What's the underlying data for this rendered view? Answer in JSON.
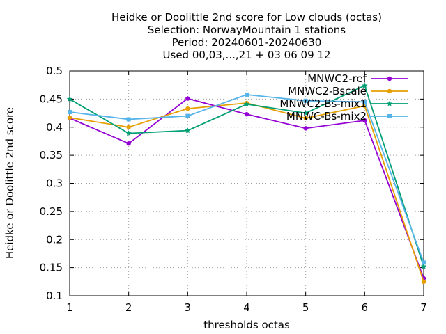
{
  "chart_data": {
    "type": "line",
    "title_lines": [
      "Heidke or Doolittle 2nd score  for Low clouds (octas)",
      "Selection: NorwayMountain      1 stations",
      "Period: 20240601-20240630",
      "Used 00,03,...,21 + 03 06 09 12"
    ],
    "xlabel": "thresholds octas",
    "ylabel": "Heidke or Doolittle 2nd score",
    "x": [
      1,
      2,
      3,
      4,
      5,
      6,
      7
    ],
    "xlim": [
      1,
      7
    ],
    "ylim": [
      0.1,
      0.5
    ],
    "x_ticks": [
      "1",
      "2",
      "3",
      "4",
      "5",
      "6",
      "7"
    ],
    "y_ticks": [
      "0.1",
      "0.15",
      "0.2",
      "0.25",
      "0.3",
      "0.35",
      "0.4",
      "0.45",
      "0.5"
    ],
    "grid": true,
    "legend_position": "top-right",
    "series": [
      {
        "name": "MNWC2-ref",
        "color": "#9400d3",
        "marker": "circle",
        "values": [
          0.416,
          0.371,
          0.451,
          0.423,
          0.398,
          0.412,
          0.131
        ]
      },
      {
        "name": "MNWC2-Bscale",
        "color": "#e69f00",
        "marker": "circle",
        "values": [
          0.417,
          0.4,
          0.433,
          0.443,
          0.416,
          0.438,
          0.125
        ]
      },
      {
        "name": "MNWC2-Bs-mix1",
        "color": "#009e73",
        "marker": "star",
        "values": [
          0.45,
          0.389,
          0.394,
          0.441,
          0.425,
          0.474,
          0.152
        ]
      },
      {
        "name": "MNWC-Bs-mix2",
        "color": "#56b4e9",
        "marker": "square",
        "values": [
          0.427,
          0.414,
          0.42,
          0.458,
          0.447,
          0.445,
          0.159
        ]
      }
    ]
  }
}
